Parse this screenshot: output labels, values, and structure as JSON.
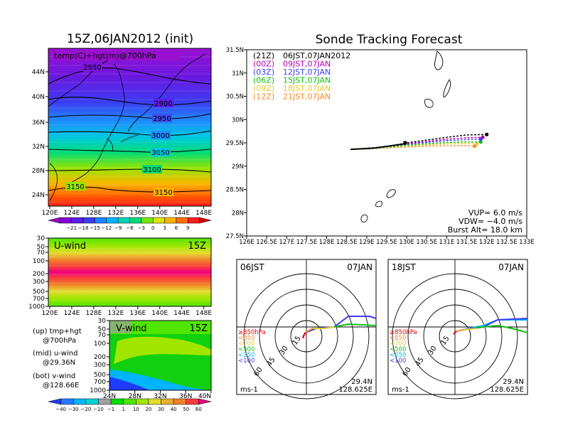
{
  "panels": {
    "map700": {
      "title": "15Z,06JAN2012 (init)",
      "label": "temp(C)+hgt(m)@700hPa",
      "lon_ticks": [
        "120E",
        "124E",
        "128E",
        "132E",
        "136E",
        "140E",
        "144E",
        "148E"
      ],
      "lat_ticks": [
        "24N",
        "28N",
        "32N",
        "36N",
        "40N",
        "44N"
      ],
      "contours": [
        "2950",
        "2900",
        "2950",
        "3000",
        "3050",
        "3100",
        "3150",
        "3150"
      ],
      "colorbar": {
        "labels": [
          "−21",
          "−18",
          "−15",
          "−12",
          "−9",
          "−6",
          "−3",
          "0",
          "3",
          "6",
          "9"
        ],
        "colors": [
          "#a000c8",
          "#8200dc",
          "#5a1ee6",
          "#3c3cf0",
          "#1e82ff",
          "#00b4ff",
          "#00d2b4",
          "#00dc78",
          "#78e600",
          "#dce600",
          "#ffb400",
          "#ff6e00",
          "#ff1e1e",
          "#d20000"
        ]
      }
    },
    "uwind": {
      "title": "U-wind",
      "time": "15Z",
      "levels": [
        "30",
        "50",
        "70",
        "100",
        "200",
        "300",
        "500",
        "700",
        "1000"
      ],
      "lon_ticks": [
        "120E",
        "124E",
        "128E",
        "132E",
        "136E",
        "140E",
        "144E",
        "148E"
      ]
    },
    "vwind": {
      "title": "V-wind",
      "time": "15Z",
      "levels": [
        "30",
        "50",
        "70",
        "100",
        "200",
        "300",
        "500",
        "700",
        "1000"
      ],
      "lat_ticks": [
        "24N",
        "28N",
        "32N",
        "36N",
        "40N"
      ],
      "colorbar": {
        "labels": [
          "−40",
          "−30",
          "−20",
          "−10",
          "−1",
          "1",
          "10",
          "20",
          "30",
          "40",
          "50",
          "60"
        ],
        "colors": [
          "#1e3cff",
          "#2878ff",
          "#00b4ff",
          "#00d2d2",
          "#a0a0a0",
          "#00dc00",
          "#50e600",
          "#a0e600",
          "#e6dc32",
          "#e6af2d",
          "#f08228",
          "#fa3c3c",
          "#f00082"
        ]
      }
    },
    "legend_notes": [
      {
        "line1": "(up) tmp+hgt",
        "line2": "@700hPa"
      },
      {
        "line1": "(mid) u-wind",
        "line2": "@29.36N"
      },
      {
        "line1": "(bot) v-wind",
        "line2": "@128.66E"
      }
    ],
    "track": {
      "title": "Sonde Tracking Forecast",
      "lon_ticks": [
        "126E",
        "126.5E",
        "127E",
        "127.5E",
        "128E",
        "128.5E",
        "129E",
        "129.5E",
        "130E",
        "130.5E",
        "131E",
        "131.5E",
        "132E",
        "132.5E",
        "133E"
      ],
      "lat_ticks": [
        "27.5N",
        "28N",
        "28.5N",
        "29N",
        "29.5N",
        "30N",
        "30.5N",
        "31N",
        "31.5N"
      ],
      "legend": [
        {
          "run": "(21Z)",
          "time": "06JST,07JAN2012",
          "color": "#000000"
        },
        {
          "run": "(00Z)",
          "time": "09JST,07JAN",
          "color": "#b400b4"
        },
        {
          "run": "(03Z)",
          "time": "12JST,07JAN",
          "color": "#3c3cf0"
        },
        {
          "run": "(06Z)",
          "time": "15JST,07JAN",
          "color": "#10c010"
        },
        {
          "run": "(09Z)",
          "time": "18JST,07JAN",
          "color": "#e6c832"
        },
        {
          "run": "(12Z)",
          "time": "21JST,07JAN",
          "color": "#f08c28"
        }
      ],
      "params": [
        "VUP= 6.0 m/s",
        "VDW= −4.0 m/s",
        "Burst Alt= 18.0 km"
      ]
    },
    "hodo_left": {
      "time_label": "06JST",
      "date_label": "07JAN",
      "rings": [
        "15",
        "30",
        "45",
        "60"
      ],
      "legend": [
        {
          "label": "≥850hPa",
          "color": "#e60000"
        },
        {
          "label": "<850",
          "color": "#f08c28"
        },
        {
          "label": "<700",
          "color": "#e6c832"
        },
        {
          "label": "<500",
          "color": "#10c010"
        },
        {
          "label": "<250",
          "color": "#00b4ff"
        },
        {
          "label": "<100",
          "color": "#3c3cf0"
        }
      ],
      "units": "ms-1",
      "lat": "29.4N",
      "lon": "128.625E"
    },
    "hodo_right": {
      "time_label": "18JST",
      "date_label": "07JAN",
      "rings": [
        "15",
        "30",
        "45",
        "60"
      ],
      "legend": [
        {
          "label": "≥850hPa",
          "color": "#e60000"
        },
        {
          "label": "<850",
          "color": "#f08c28"
        },
        {
          "label": "<700",
          "color": "#e6c832"
        },
        {
          "label": "<500",
          "color": "#10c010"
        },
        {
          "label": "<250",
          "color": "#00b4ff"
        },
        {
          "label": "<100",
          "color": "#3c3cf0"
        }
      ],
      "units": "ms-1",
      "lat": "29.4N",
      "lon": "128.625E"
    }
  },
  "chart_data": [
    {
      "type": "line",
      "title": "Sonde Tracking Forecast",
      "xlabel": "",
      "ylabel": "",
      "xlim": [
        126,
        133
      ],
      "ylim": [
        27.5,
        31.5
      ],
      "series": [
        {
          "name": "(21Z) 06JST,07JAN2012",
          "x": [
            128.6,
            129.0,
            129.5,
            130.0,
            130.5,
            131.0,
            131.5,
            132.0
          ],
          "y": [
            29.36,
            29.38,
            29.42,
            29.5,
            29.56,
            29.62,
            29.67,
            29.68
          ]
        },
        {
          "name": "(00Z) 09JST,07JAN",
          "x": [
            128.6,
            129.0,
            129.5,
            130.0,
            130.5,
            131.0,
            131.5,
            131.9
          ],
          "y": [
            29.36,
            29.38,
            29.42,
            29.48,
            29.53,
            29.58,
            29.61,
            29.62
          ]
        },
        {
          "name": "(03Z) 12JST,07JAN",
          "x": [
            128.6,
            129.0,
            129.5,
            130.0,
            130.5,
            131.0,
            131.5,
            131.85
          ],
          "y": [
            29.36,
            29.38,
            29.42,
            29.47,
            29.51,
            29.55,
            29.57,
            29.58
          ]
        },
        {
          "name": "(06Z) 15JST,07JAN",
          "x": [
            128.6,
            129.0,
            129.5,
            130.0,
            130.5,
            131.0,
            131.5,
            131.85
          ],
          "y": [
            29.36,
            29.37,
            29.41,
            29.45,
            29.48,
            29.51,
            29.52,
            29.52
          ]
        },
        {
          "name": "(09Z) 18JST,07JAN",
          "x": [
            128.6,
            129.0,
            129.5,
            130.0,
            130.5,
            131.0,
            131.5,
            131.75
          ],
          "y": [
            29.36,
            29.37,
            29.4,
            29.43,
            29.46,
            29.48,
            29.49,
            29.48
          ]
        },
        {
          "name": "(12Z) 21JST,07JAN",
          "x": [
            128.6,
            129.0,
            129.5,
            130.0,
            130.5,
            131.0,
            131.5,
            131.7
          ],
          "y": [
            29.36,
            29.37,
            29.39,
            29.41,
            29.43,
            29.44,
            29.44,
            29.43
          ]
        }
      ]
    }
  ]
}
